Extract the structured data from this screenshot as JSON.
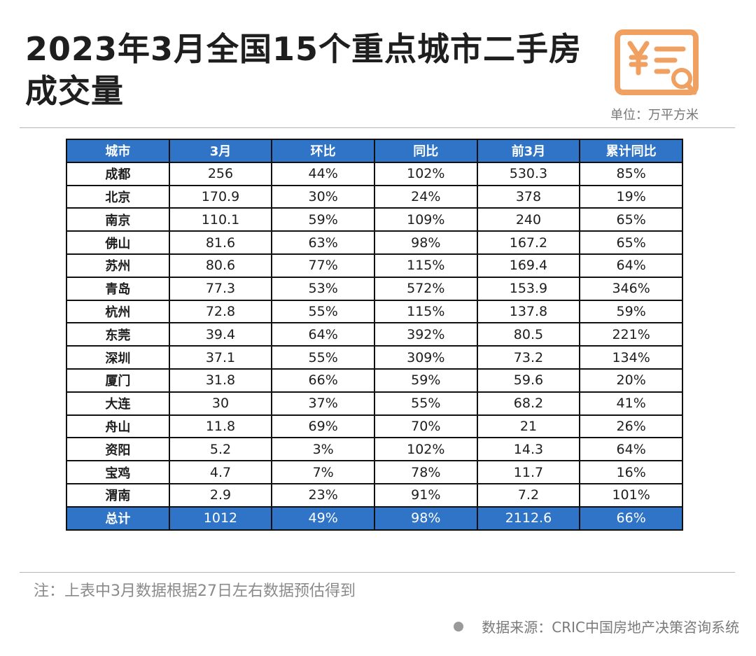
{
  "title": "2023年3月全国15个重点城市二手房成交量",
  "unit": "单位：万平方米",
  "logo_icon": "yuan-document-search-icon",
  "accent_color": "#2f74c6",
  "logo_color": "#f0a060",
  "table": {
    "headers": [
      "城市",
      "3月",
      "环比",
      "同比",
      "前3月",
      "累计同比"
    ],
    "rows": [
      [
        "成都",
        "256",
        "44%",
        "102%",
        "530.3",
        "85%"
      ],
      [
        "北京",
        "170.9",
        "30%",
        "24%",
        "378",
        "19%"
      ],
      [
        "南京",
        "110.1",
        "59%",
        "109%",
        "240",
        "65%"
      ],
      [
        "佛山",
        "81.6",
        "63%",
        "98%",
        "167.2",
        "65%"
      ],
      [
        "苏州",
        "80.6",
        "77%",
        "115%",
        "169.4",
        "64%"
      ],
      [
        "青岛",
        "77.3",
        "53%",
        "572%",
        "153.9",
        "346%"
      ],
      [
        "杭州",
        "72.8",
        "55%",
        "115%",
        "137.8",
        "59%"
      ],
      [
        "东莞",
        "39.4",
        "64%",
        "392%",
        "80.5",
        "221%"
      ],
      [
        "深圳",
        "37.1",
        "55%",
        "309%",
        "73.2",
        "134%"
      ],
      [
        "厦门",
        "31.8",
        "66%",
        "59%",
        "59.6",
        "20%"
      ],
      [
        "大连",
        "30",
        "37%",
        "55%",
        "68.2",
        "41%"
      ],
      [
        "舟山",
        "11.8",
        "69%",
        "70%",
        "21",
        "26%"
      ],
      [
        "资阳",
        "5.2",
        "3%",
        "102%",
        "14.3",
        "64%"
      ],
      [
        "宝鸡",
        "4.7",
        "7%",
        "78%",
        "11.7",
        "16%"
      ],
      [
        "渭南",
        "2.9",
        "23%",
        "91%",
        "7.2",
        "101%"
      ]
    ],
    "total": [
      "总计",
      "1012",
      "49%",
      "98%",
      "2112.6",
      "66%"
    ]
  },
  "note": "注：上表中3月数据根据27日左右数据预估得到",
  "source": "数据来源：CRIC中国房地产决策咨询系统"
}
